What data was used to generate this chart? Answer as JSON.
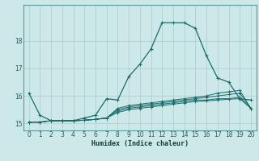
{
  "title": "",
  "xlabel": "Humidex (Indice chaleur)",
  "ylabel": "",
  "background_color": "#cce8e8",
  "grid_color": "#aacccc",
  "line_color": "#1a6b6b",
  "xlim": [
    -0.5,
    20.5
  ],
  "ylim": [
    14.75,
    19.3
  ],
  "yticks": [
    15,
    16,
    17,
    18
  ],
  "xticks": [
    0,
    1,
    2,
    3,
    4,
    5,
    6,
    7,
    8,
    9,
    10,
    11,
    12,
    13,
    14,
    15,
    16,
    17,
    18,
    19,
    20
  ],
  "lines": [
    {
      "x": [
        0,
        1,
        2,
        3,
        4,
        5,
        6,
        7,
        8,
        9,
        10,
        11,
        12,
        13,
        14,
        15,
        16,
        17,
        18,
        19,
        20
      ],
      "y": [
        16.1,
        15.3,
        15.1,
        15.1,
        15.1,
        15.2,
        15.3,
        15.9,
        15.85,
        16.7,
        17.15,
        17.7,
        18.65,
        18.65,
        18.65,
        18.45,
        17.45,
        16.65,
        16.5,
        15.9,
        15.85
      ]
    },
    {
      "x": [
        0,
        1,
        2,
        3,
        4,
        5,
        6,
        7,
        8,
        9,
        10,
        11,
        12,
        13,
        14,
        15,
        16,
        17,
        18,
        19,
        20
      ],
      "y": [
        15.05,
        15.05,
        15.1,
        15.1,
        15.1,
        15.12,
        15.15,
        15.2,
        15.55,
        15.65,
        15.7,
        15.75,
        15.8,
        15.85,
        15.9,
        15.95,
        16.0,
        16.1,
        16.15,
        16.2,
        15.55
      ]
    },
    {
      "x": [
        0,
        1,
        2,
        3,
        4,
        5,
        6,
        7,
        8,
        9,
        10,
        11,
        12,
        13,
        14,
        15,
        16,
        17,
        18,
        19,
        20
      ],
      "y": [
        15.05,
        15.05,
        15.1,
        15.1,
        15.1,
        15.12,
        15.15,
        15.2,
        15.5,
        15.6,
        15.65,
        15.7,
        15.75,
        15.8,
        15.85,
        15.9,
        15.95,
        16.0,
        16.05,
        16.1,
        15.55
      ]
    },
    {
      "x": [
        0,
        1,
        2,
        3,
        4,
        5,
        6,
        7,
        8,
        9,
        10,
        11,
        12,
        13,
        14,
        15,
        16,
        17,
        18,
        19,
        20
      ],
      "y": [
        15.05,
        15.05,
        15.1,
        15.1,
        15.1,
        15.12,
        15.15,
        15.2,
        15.45,
        15.55,
        15.6,
        15.65,
        15.7,
        15.75,
        15.8,
        15.85,
        15.85,
        15.9,
        15.9,
        15.95,
        15.55
      ]
    },
    {
      "x": [
        0,
        1,
        2,
        3,
        4,
        5,
        6,
        7,
        8,
        9,
        10,
        11,
        12,
        13,
        14,
        15,
        16,
        17,
        18,
        19,
        20
      ],
      "y": [
        15.05,
        15.05,
        15.1,
        15.1,
        15.1,
        15.12,
        15.15,
        15.2,
        15.4,
        15.5,
        15.55,
        15.6,
        15.65,
        15.7,
        15.75,
        15.8,
        15.82,
        15.85,
        15.88,
        15.9,
        15.55
      ]
    }
  ]
}
